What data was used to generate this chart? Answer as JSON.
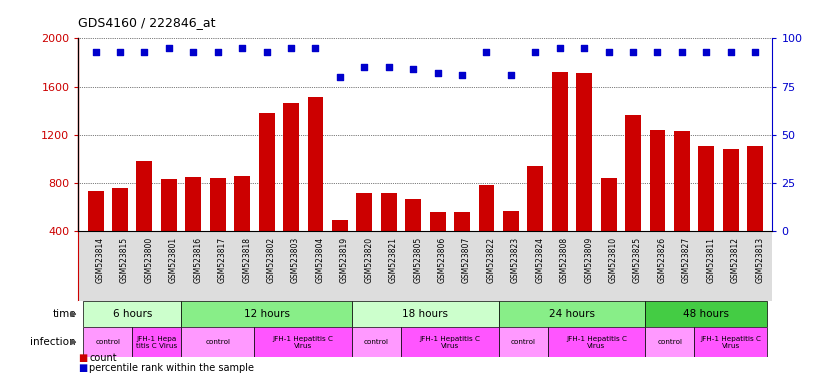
{
  "title": "GDS4160 / 222846_at",
  "samples": [
    "GSM523814",
    "GSM523815",
    "GSM523800",
    "GSM523801",
    "GSM523816",
    "GSM523817",
    "GSM523818",
    "GSM523802",
    "GSM523803",
    "GSM523804",
    "GSM523819",
    "GSM523820",
    "GSM523821",
    "GSM523805",
    "GSM523806",
    "GSM523807",
    "GSM523822",
    "GSM523823",
    "GSM523824",
    "GSM523808",
    "GSM523809",
    "GSM523810",
    "GSM523825",
    "GSM523826",
    "GSM523827",
    "GSM523811",
    "GSM523812",
    "GSM523813"
  ],
  "counts": [
    730,
    760,
    980,
    830,
    850,
    840,
    860,
    1380,
    1460,
    1510,
    490,
    720,
    720,
    670,
    560,
    560,
    780,
    570,
    940,
    1720,
    1710,
    840,
    1360,
    1240,
    1230,
    1110,
    1080,
    1110
  ],
  "percentiles": [
    93,
    93,
    93,
    95,
    93,
    93,
    95,
    93,
    95,
    95,
    80,
    85,
    85,
    84,
    82,
    81,
    93,
    81,
    93,
    95,
    95,
    93,
    93,
    93,
    93,
    93,
    93,
    93
  ],
  "bar_color": "#cc0000",
  "dot_color": "#0000cc",
  "ylim_left": [
    400,
    2000
  ],
  "yticks_left": [
    400,
    800,
    1200,
    1600,
    2000
  ],
  "ylim_right": [
    0,
    100
  ],
  "yticks_right": [
    0,
    25,
    50,
    75,
    100
  ],
  "time_groups": [
    {
      "label": "6 hours",
      "start": 0,
      "end": 4,
      "color": "#ccffcc"
    },
    {
      "label": "12 hours",
      "start": 4,
      "end": 11,
      "color": "#88ee88"
    },
    {
      "label": "18 hours",
      "start": 11,
      "end": 17,
      "color": "#ccffcc"
    },
    {
      "label": "24 hours",
      "start": 17,
      "end": 23,
      "color": "#88ee88"
    },
    {
      "label": "48 hours",
      "start": 23,
      "end": 28,
      "color": "#44cc44"
    }
  ],
  "infection_groups": [
    {
      "label": "control",
      "start": 0,
      "end": 2,
      "color": "#ff99ff"
    },
    {
      "label": "JFH-1 Hepa\ntitis C Virus",
      "start": 2,
      "end": 4,
      "color": "#ff55ff"
    },
    {
      "label": "control",
      "start": 4,
      "end": 7,
      "color": "#ff99ff"
    },
    {
      "label": "JFH-1 Hepatitis C\nVirus",
      "start": 7,
      "end": 11,
      "color": "#ff55ff"
    },
    {
      "label": "control",
      "start": 11,
      "end": 13,
      "color": "#ff99ff"
    },
    {
      "label": "JFH-1 Hepatitis C\nVirus",
      "start": 13,
      "end": 17,
      "color": "#ff55ff"
    },
    {
      "label": "control",
      "start": 17,
      "end": 19,
      "color": "#ff99ff"
    },
    {
      "label": "JFH-1 Hepatitis C\nVirus",
      "start": 19,
      "end": 23,
      "color": "#ff55ff"
    },
    {
      "label": "control",
      "start": 23,
      "end": 25,
      "color": "#ff99ff"
    },
    {
      "label": "JFH-1 Hepatitis C\nVirus",
      "start": 25,
      "end": 28,
      "color": "#ff55ff"
    }
  ],
  "ylabel_left_color": "#cc0000",
  "ylabel_right_color": "#0000cc",
  "tick_label_bg": "#dddddd",
  "n_samples": 28
}
